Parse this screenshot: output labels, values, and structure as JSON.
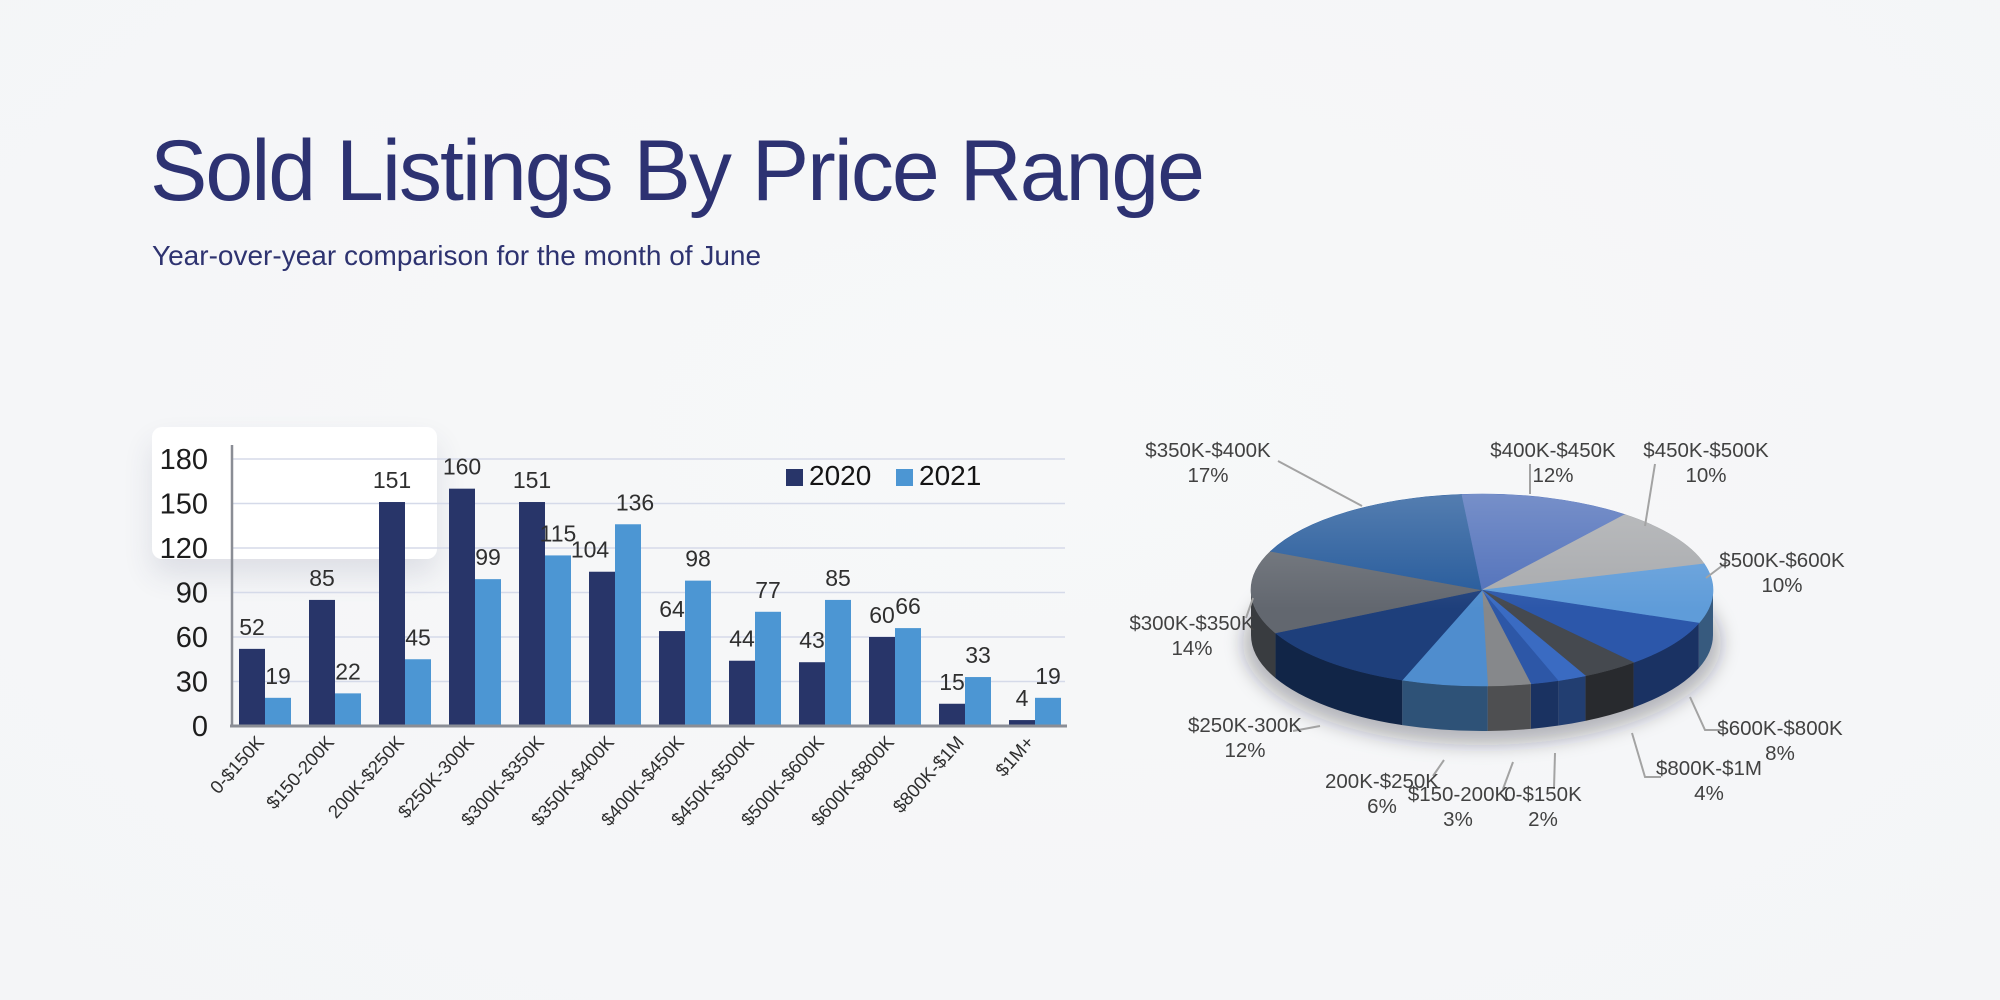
{
  "page": {
    "title": "Sold Listings By Price Range",
    "subtitle": "Year-over-year comparison for the month of June",
    "title_color": "#2d3272",
    "background_color": "#f4f5f7"
  },
  "chart_data": [
    {
      "type": "bar",
      "name": "sold-listings-by-price-range-bars",
      "categories": [
        "0-$150K",
        "$150-200K",
        "200K-$250K",
        "$250K-300K",
        "$300K-$350K",
        "$350K-$400K",
        "$400K-$450K",
        "$450K-$500K",
        "$500K-$600K",
        "$600K-$800K",
        "$800K-$1M",
        "$1M+"
      ],
      "series": [
        {
          "name": "2020",
          "color": "#283569",
          "values": [
            52,
            85,
            151,
            160,
            151,
            104,
            64,
            44,
            43,
            60,
            15,
            4
          ]
        },
        {
          "name": "2021",
          "color": "#4c96d3",
          "values": [
            19,
            22,
            45,
            99,
            115,
            136,
            98,
            77,
            85,
            66,
            33,
            19
          ]
        }
      ],
      "ylim": [
        0,
        180
      ],
      "yticks": [
        0,
        30,
        60,
        90,
        120,
        150,
        180
      ],
      "grid": true,
      "legend_position": "top-right",
      "gridline_color": "#d5dae9",
      "axis_color": "#8a8d95",
      "value_label_color": "#2f2f2f",
      "tick_label_color": "#1d1d1d",
      "xlabel_color": "#2e2e2e",
      "legend_text_color": "#141414"
    },
    {
      "type": "pie",
      "name": "sold-listings-share-pie",
      "style": "3d",
      "start_angle_deg": 70.6,
      "label_color": "#414141",
      "callout_color": "#a3a3a3",
      "slices": [
        {
          "label": "0-$150K",
          "pct": 2,
          "color": "#2d57a7",
          "label_visible": true
        },
        {
          "label": "$150-200K",
          "pct": 3,
          "color": "#86888b",
          "label_visible": true
        },
        {
          "label": "200K-$250K",
          "pct": 6,
          "color": "#4f8dce",
          "label_visible": true
        },
        {
          "label": "$250K-300K",
          "pct": 12,
          "color": "#1e3f7b",
          "label_visible": true
        },
        {
          "label": "$300K-$350K",
          "pct": 14,
          "color": "#62676f",
          "label_visible": true
        },
        {
          "label": "$350K-$400K",
          "pct": 17,
          "color": "#24599a",
          "label_visible": true
        },
        {
          "label": "$400K-$450K",
          "pct": 12,
          "color": "#5070ba",
          "label_visible": true
        },
        {
          "label": "$450K-$500K",
          "pct": 10,
          "color": "#a8aaad",
          "label_visible": true
        },
        {
          "label": "$500K-$600K",
          "pct": 10,
          "color": "#5f9cd9",
          "label_visible": true
        },
        {
          "label": "$600K-$800K",
          "pct": 8,
          "color": "#2c57aa",
          "label_visible": true
        },
        {
          "label": "$800K-$1M",
          "pct": 4,
          "color": "#45494f",
          "label_visible": true
        },
        {
          "label": "$1M+",
          "pct": 2,
          "color": "#3a6bc2",
          "label_visible": false
        }
      ]
    }
  ]
}
